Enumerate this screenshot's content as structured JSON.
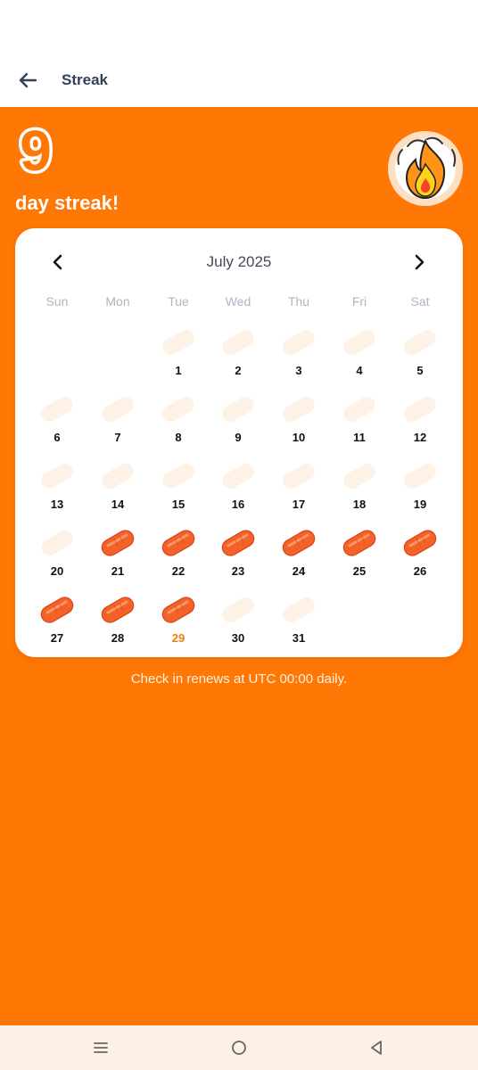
{
  "header": {
    "title": "Streak",
    "back_icon": "arrow-left-icon"
  },
  "streak": {
    "count": "9",
    "label": "day streak!",
    "badge_icon": "fire-icon"
  },
  "colors": {
    "accent": "#FF7704",
    "checked_pill": "#F4622A",
    "empty_pill": "#FEF1E6",
    "today": "#F27B0C"
  },
  "calendar": {
    "month_label": "July 2025",
    "prev_icon": "chevron-left-icon",
    "next_icon": "chevron-right-icon",
    "weekdays": [
      "Sun",
      "Mon",
      "Tue",
      "Wed",
      "Thu",
      "Fri",
      "Sat"
    ],
    "first_weekday_index": 2,
    "days": [
      {
        "day": "1",
        "checked": false
      },
      {
        "day": "2",
        "checked": false
      },
      {
        "day": "3",
        "checked": false
      },
      {
        "day": "4",
        "checked": false
      },
      {
        "day": "5",
        "checked": false
      },
      {
        "day": "6",
        "checked": false
      },
      {
        "day": "7",
        "checked": false
      },
      {
        "day": "8",
        "checked": false
      },
      {
        "day": "9",
        "checked": false
      },
      {
        "day": "10",
        "checked": false
      },
      {
        "day": "11",
        "checked": false
      },
      {
        "day": "12",
        "checked": false
      },
      {
        "day": "13",
        "checked": false
      },
      {
        "day": "14",
        "checked": false
      },
      {
        "day": "15",
        "checked": false
      },
      {
        "day": "16",
        "checked": false
      },
      {
        "day": "17",
        "checked": false
      },
      {
        "day": "18",
        "checked": false
      },
      {
        "day": "19",
        "checked": false
      },
      {
        "day": "20",
        "checked": false
      },
      {
        "day": "21",
        "checked": true
      },
      {
        "day": "22",
        "checked": true
      },
      {
        "day": "23",
        "checked": true
      },
      {
        "day": "24",
        "checked": true
      },
      {
        "day": "25",
        "checked": true
      },
      {
        "day": "26",
        "checked": true
      },
      {
        "day": "27",
        "checked": true
      },
      {
        "day": "28",
        "checked": true
      },
      {
        "day": "29",
        "checked": true,
        "today": true
      },
      {
        "day": "30",
        "checked": false
      },
      {
        "day": "31",
        "checked": false
      }
    ]
  },
  "note": "Check in renews at UTC 00:00 daily.",
  "system_nav": {
    "menu_icon": "menu-icon",
    "home_icon": "home-circle-icon",
    "back_icon": "back-triangle-icon"
  }
}
